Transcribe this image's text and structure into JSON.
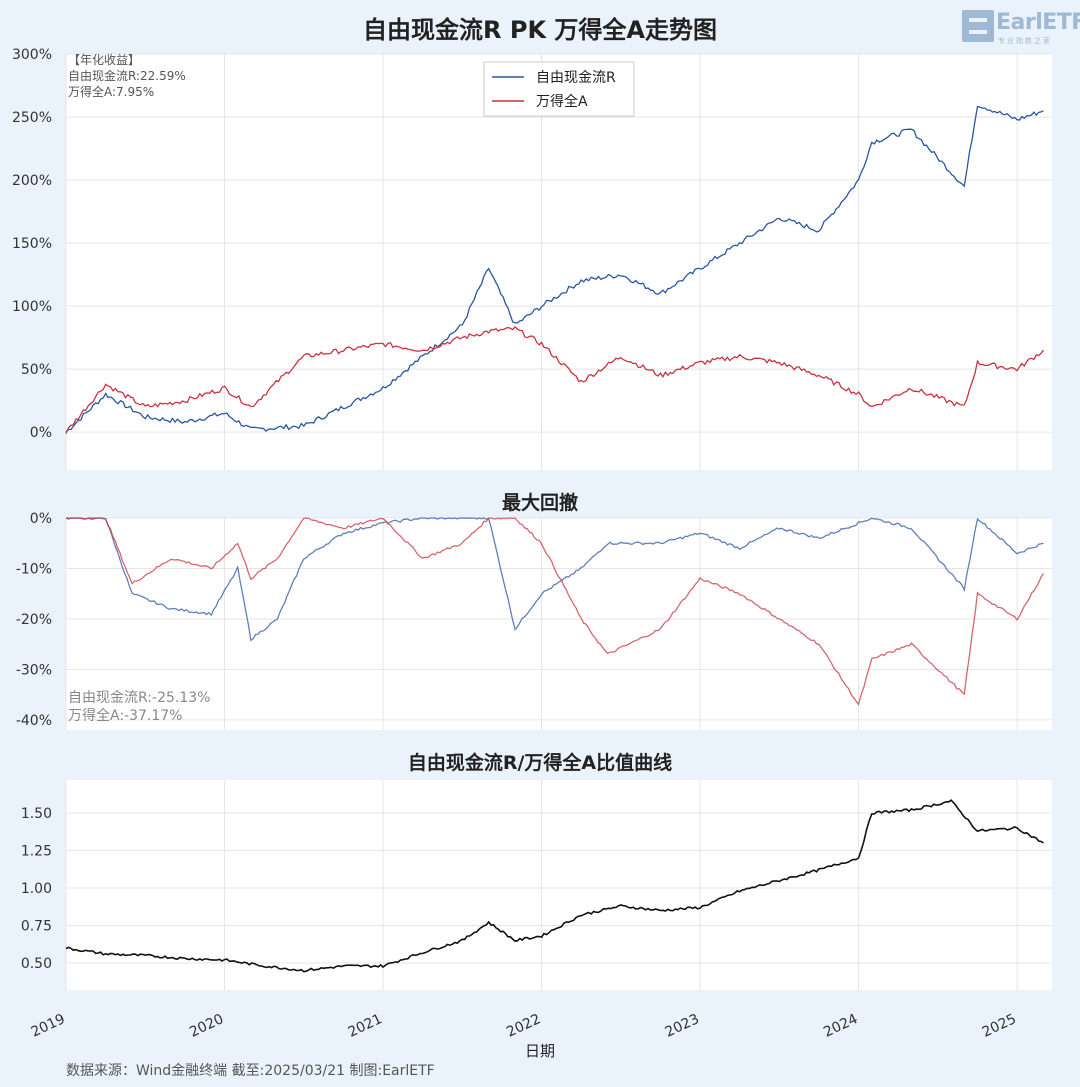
{
  "title": "自由现金流R PK 万得全A走势图",
  "logo": {
    "text": "EarlETF",
    "sub": "专业指数之家"
  },
  "footer": "数据来源：Wind金融终端 截至:2025/03/21 制图:EarlETF",
  "colors": {
    "series1": "#2a56a4",
    "series2": "#c9343e",
    "ratio": "#111111",
    "grid": "#e5e5e5",
    "panel_bg": "#ffffff"
  },
  "chart_data": [
    {
      "type": "line",
      "title": "",
      "annotation_header": "【年化收益】",
      "annotations": [
        "自由现金流R:22.59%",
        "万得全A:7.95%"
      ],
      "legend_position": "top-center",
      "ylim": [
        -30,
        300
      ],
      "yticks": [
        "0%",
        "50%",
        "100%",
        "150%",
        "200%",
        "250%",
        "300%"
      ],
      "ytick_values": [
        0,
        50,
        100,
        150,
        200,
        250,
        300
      ],
      "x": [
        "2019-01",
        "2019-04",
        "2019-07",
        "2019-10",
        "2020-01",
        "2020-03",
        "2020-07",
        "2020-10",
        "2021-01",
        "2021-04",
        "2021-07",
        "2021-09",
        "2021-11",
        "2022-01",
        "2022-04",
        "2022-07",
        "2022-10",
        "2023-01",
        "2023-04",
        "2023-07",
        "2023-10",
        "2024-01",
        "2024-02",
        "2024-05",
        "2024-09",
        "2024-10",
        "2025-01",
        "2025-03"
      ],
      "series": [
        {
          "name": "自由现金流R",
          "values": [
            0,
            30,
            12,
            8,
            15,
            2,
            5,
            20,
            35,
            60,
            85,
            130,
            85,
            100,
            120,
            125,
            110,
            130,
            150,
            170,
            160,
            200,
            230,
            240,
            195,
            260,
            248,
            255
          ]
        },
        {
          "name": "万得全A",
          "values": [
            0,
            38,
            20,
            25,
            35,
            20,
            60,
            65,
            70,
            65,
            75,
            80,
            82,
            70,
            40,
            60,
            45,
            55,
            60,
            55,
            45,
            30,
            20,
            35,
            20,
            55,
            50,
            65
          ]
        }
      ]
    },
    {
      "type": "line",
      "title": "最大回撤",
      "annotations": [
        "自由现金流R:-25.13%",
        "万得全A:-37.17%"
      ],
      "ylim": [
        -42,
        0
      ],
      "yticks": [
        "0%",
        "-10%",
        "-20%",
        "-30%",
        "-40%"
      ],
      "ytick_values": [
        0,
        -10,
        -20,
        -30,
        -40
      ],
      "x": [
        "2019-01",
        "2019-04",
        "2019-06",
        "2019-09",
        "2019-12",
        "2020-02",
        "2020-03",
        "2020-05",
        "2020-07",
        "2020-10",
        "2021-01",
        "2021-04",
        "2021-07",
        "2021-09",
        "2021-11",
        "2022-01",
        "2022-04",
        "2022-06",
        "2022-10",
        "2023-01",
        "2023-04",
        "2023-07",
        "2023-10",
        "2024-01",
        "2024-02",
        "2024-05",
        "2024-09",
        "2024-10",
        "2025-01",
        "2025-03"
      ],
      "series": [
        {
          "name": "自由现金流R",
          "values": [
            0,
            0,
            -15,
            -18,
            -19,
            -10,
            -24,
            -20,
            -8,
            -3,
            -1,
            0,
            0,
            0,
            -22,
            -15,
            -10,
            -5,
            -5,
            -3,
            -6,
            -2,
            -4,
            -1,
            0,
            -2,
            -14,
            0,
            -7,
            -5
          ]
        },
        {
          "name": "万得全A",
          "values": [
            0,
            0,
            -13,
            -8,
            -10,
            -5,
            -12,
            -8,
            0,
            -2,
            0,
            -8,
            -5,
            0,
            0,
            -5,
            -20,
            -27,
            -22,
            -12,
            -15,
            -20,
            -25,
            -37,
            -28,
            -25,
            -35,
            -15,
            -20,
            -11
          ]
        }
      ]
    },
    {
      "type": "line",
      "title": "自由现金流R/万得全A比值曲线",
      "ylim": [
        0.32,
        1.72
      ],
      "yticks": [
        "0.50",
        "0.75",
        "1.00",
        "1.25",
        "1.50"
      ],
      "ytick_values": [
        0.5,
        0.75,
        1.0,
        1.25,
        1.5
      ],
      "xticks": [
        "2019",
        "2020",
        "2021",
        "2022",
        "2023",
        "2024",
        "2025"
      ],
      "xlabel": "日期",
      "x": [
        "2019-01",
        "2019-04",
        "2019-07",
        "2019-10",
        "2020-01",
        "2020-04",
        "2020-07",
        "2020-10",
        "2021-01",
        "2021-04",
        "2021-07",
        "2021-09",
        "2021-11",
        "2022-01",
        "2022-04",
        "2022-07",
        "2022-10",
        "2023-01",
        "2023-04",
        "2023-07",
        "2023-10",
        "2024-01",
        "2024-02",
        "2024-05",
        "2024-08",
        "2024-10",
        "2025-01",
        "2025-03"
      ],
      "series": [
        {
          "name": "",
          "values": [
            0.6,
            0.56,
            0.55,
            0.53,
            0.52,
            0.48,
            0.45,
            0.48,
            0.48,
            0.57,
            0.65,
            0.77,
            0.65,
            0.68,
            0.82,
            0.88,
            0.85,
            0.87,
            0.98,
            1.05,
            1.12,
            1.2,
            1.5,
            1.52,
            1.58,
            1.38,
            1.4,
            1.3
          ]
        }
      ]
    }
  ]
}
